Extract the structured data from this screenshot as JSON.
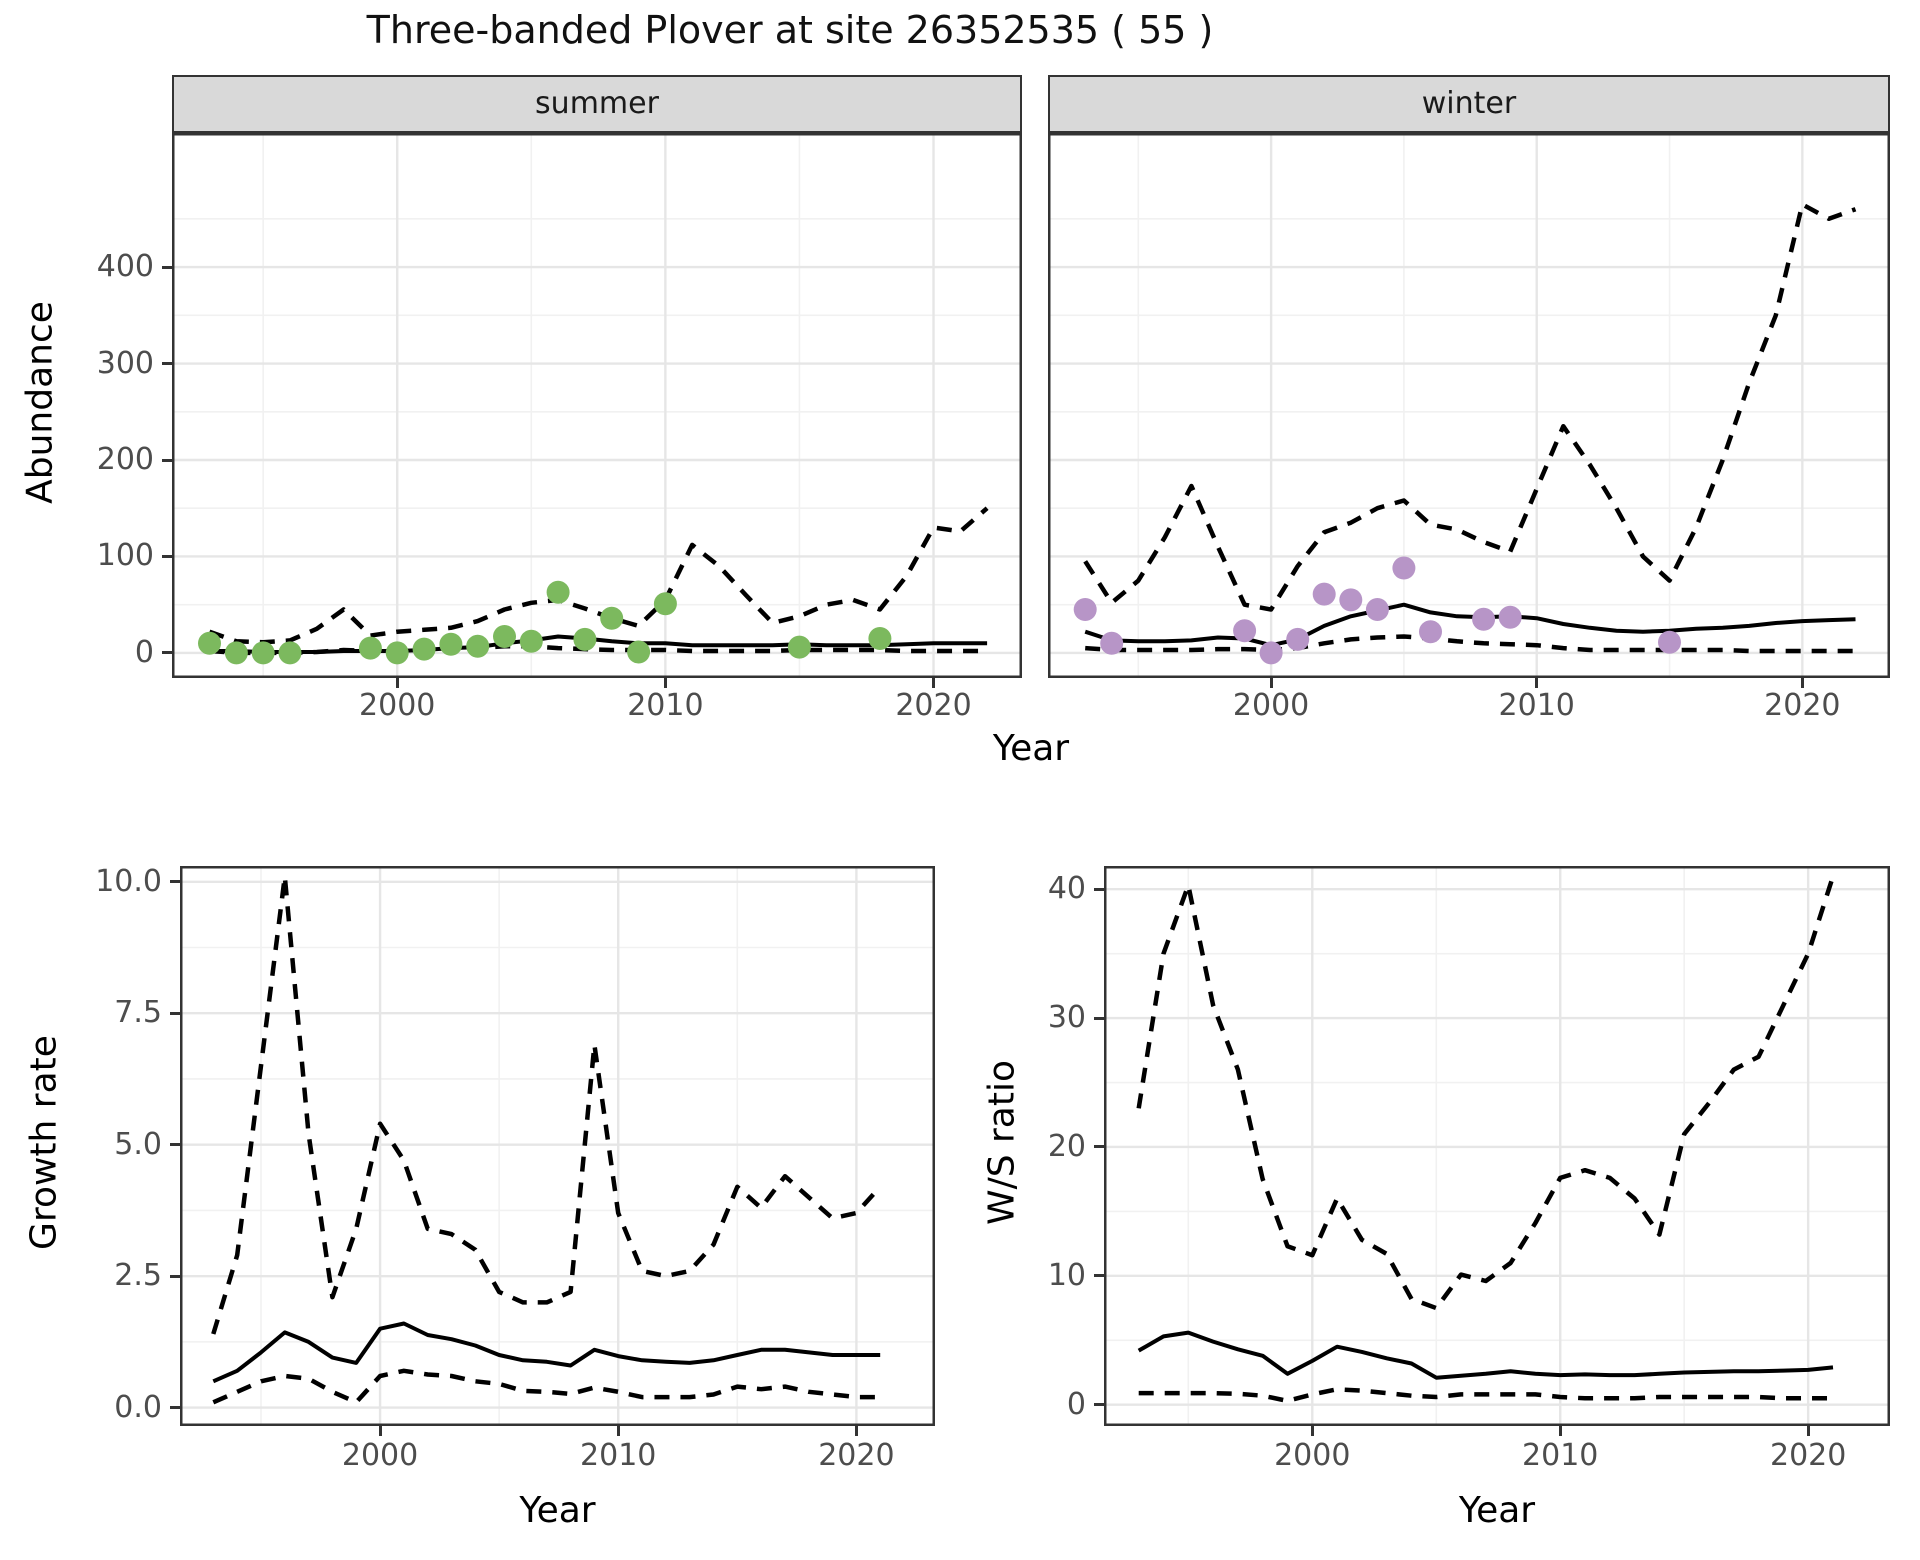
{
  "title": "Three-banded Plover at site 26352535 ( 55 )",
  "colors": {
    "summer_point": "#7cb95e",
    "winter_point": "#b795c7",
    "line": "#000000",
    "panel_border": "#333333",
    "grid_major": "#e6e6e6",
    "grid_minor": "#f1f1f1",
    "strip_bg": "#d9d9d9",
    "tick_text": "#4d4d4d",
    "title_text": "#111111"
  },
  "shared_x_title": "Year",
  "chart_data": [
    {
      "id": "summer",
      "type": "line",
      "facet": "summer",
      "ylabel": "Abundance",
      "xlabel": "Year",
      "legend_position": "none",
      "grid": true,
      "x_domain": [
        1991.6,
        2023.3
      ],
      "y_domain": [
        -26,
        539
      ],
      "x_ticks": [
        2000,
        2010,
        2020
      ],
      "x_tick_labels": [
        "2000",
        "2010",
        "2020"
      ],
      "x_minor": [
        1995,
        2005,
        2015
      ],
      "y_ticks": [
        0,
        100,
        200,
        300,
        400
      ],
      "y_tick_labels": [
        "0",
        "100",
        "200",
        "300",
        "400"
      ],
      "y_minor": [
        50,
        150,
        250,
        350,
        450
      ],
      "show_y_labels": true,
      "years": [
        1993,
        1994,
        1995,
        1996,
        1997,
        1998,
        1999,
        2000,
        2001,
        2002,
        2003,
        2004,
        2005,
        2006,
        2007,
        2008,
        2009,
        2010,
        2011,
        2012,
        2013,
        2014,
        2015,
        2016,
        2017,
        2018,
        2019,
        2020,
        2021,
        2022
      ],
      "series": [
        {
          "name": "ci_upper",
          "style": "dashed",
          "values": [
            22,
            12,
            11,
            13,
            25,
            45,
            18,
            22,
            24,
            26,
            33,
            45,
            52,
            55,
            46,
            36,
            28,
            55,
            112,
            90,
            60,
            31,
            38,
            50,
            55,
            45,
            80,
            130,
            126,
            150
          ]
        },
        {
          "name": "median",
          "style": "solid",
          "values": [
            2,
            2,
            1,
            1,
            1,
            2,
            2,
            2,
            3,
            5,
            6,
            10,
            13,
            17,
            15,
            12,
            10,
            10,
            8,
            8,
            8,
            8,
            9,
            8,
            8,
            8,
            9,
            10,
            10,
            10
          ]
        },
        {
          "name": "ci_lower",
          "style": "dashed",
          "values": [
            2,
            0,
            0,
            0,
            1,
            3,
            2,
            3,
            4,
            5,
            5,
            7,
            7,
            5,
            4,
            3,
            3,
            3,
            2,
            2,
            2,
            2,
            3,
            3,
            3,
            3,
            2,
            2,
            2,
            2
          ]
        }
      ],
      "points": {
        "color_key": "summer_point",
        "years": [
          1993,
          1994,
          1995,
          1996,
          1999,
          2000,
          2001,
          2002,
          2003,
          2004,
          2005,
          2006,
          2007,
          2008,
          2009,
          2010,
          2015,
          2018
        ],
        "values": [
          10,
          0,
          0,
          0,
          5,
          0,
          4,
          9,
          7,
          17,
          12,
          63,
          14,
          36,
          1,
          51,
          6,
          15
        ]
      }
    },
    {
      "id": "winter",
      "type": "line",
      "facet": "winter",
      "ylabel": "Abundance",
      "xlabel": "Year",
      "grid": true,
      "x_domain": [
        1991.6,
        2023.3
      ],
      "y_domain": [
        -26,
        539
      ],
      "x_ticks": [
        2000,
        2010,
        2020
      ],
      "x_tick_labels": [
        "2000",
        "2010",
        "2020"
      ],
      "x_minor": [
        1995,
        2005,
        2015
      ],
      "y_ticks": [
        0,
        100,
        200,
        300,
        400
      ],
      "y_tick_labels": [
        "0",
        "100",
        "200",
        "300",
        "400"
      ],
      "y_minor": [
        50,
        150,
        250,
        350,
        450
      ],
      "show_y_labels": false,
      "years": [
        1993,
        1994,
        1995,
        1996,
        1997,
        1998,
        1999,
        2000,
        2001,
        2002,
        2003,
        2004,
        2005,
        2006,
        2007,
        2008,
        2009,
        2010,
        2011,
        2012,
        2013,
        2014,
        2015,
        2016,
        2017,
        2018,
        2019,
        2020,
        2021,
        2022
      ],
      "series": [
        {
          "name": "ci_upper",
          "style": "dashed",
          "values": [
            95,
            52,
            75,
            120,
            173,
            110,
            50,
            45,
            90,
            125,
            135,
            150,
            158,
            133,
            128,
            115,
            105,
            170,
            235,
            195,
            150,
            100,
            75,
            130,
            200,
            280,
            350,
            465,
            450,
            460
          ]
        },
        {
          "name": "median",
          "style": "solid",
          "values": [
            22,
            13,
            12,
            12,
            13,
            16,
            15,
            8,
            14,
            28,
            38,
            44,
            50,
            42,
            38,
            37,
            38,
            36,
            30,
            26,
            23,
            22,
            23,
            25,
            26,
            28,
            31,
            33,
            34,
            35
          ]
        },
        {
          "name": "ci_lower",
          "style": "dashed",
          "values": [
            5,
            3,
            3,
            3,
            3,
            4,
            4,
            3,
            5,
            10,
            14,
            16,
            17,
            15,
            12,
            10,
            9,
            8,
            5,
            3,
            3,
            3,
            3,
            3,
            3,
            2,
            2,
            2,
            2,
            2
          ]
        }
      ],
      "points": {
        "color_key": "winter_point",
        "years": [
          1993,
          1994,
          1999,
          2000,
          2001,
          2002,
          2003,
          2004,
          2005,
          2006,
          2008,
          2009,
          2015
        ],
        "values": [
          45,
          10,
          23,
          0,
          14,
          61,
          55,
          45,
          88,
          22,
          35,
          37,
          11
        ]
      }
    },
    {
      "id": "growth",
      "type": "line",
      "facet": null,
      "ylabel": "Growth rate",
      "xlabel": "Year",
      "grid": true,
      "x_domain": [
        1991.6,
        2023.3
      ],
      "y_domain": [
        -0.35,
        10.3
      ],
      "x_ticks": [
        2000,
        2010,
        2020
      ],
      "x_tick_labels": [
        "2000",
        "2010",
        "2020"
      ],
      "x_minor": [
        1995,
        2005,
        2015
      ],
      "y_ticks": [
        0,
        2.5,
        5,
        7.5,
        10
      ],
      "y_tick_labels": [
        "0.0",
        "2.5",
        "5.0",
        "7.5",
        "10.0"
      ],
      "y_minor": [
        1.25,
        3.75,
        6.25,
        8.75
      ],
      "show_y_labels": true,
      "years": [
        1993,
        1994,
        1995,
        1996,
        1997,
        1998,
        1999,
        2000,
        2001,
        2002,
        2003,
        2004,
        2005,
        2006,
        2007,
        2008,
        2009,
        2010,
        2011,
        2012,
        2013,
        2014,
        2015,
        2016,
        2017,
        2018,
        2019,
        2020,
        2021
      ],
      "series": [
        {
          "name": "ci_upper",
          "style": "dashed",
          "values": [
            1.4,
            2.9,
            6.5,
            10.1,
            5.2,
            2.1,
            3.4,
            5.4,
            4.7,
            3.4,
            3.3,
            3.0,
            2.2,
            2.0,
            2.0,
            2.2,
            6.9,
            3.7,
            2.6,
            2.5,
            2.6,
            3.1,
            4.2,
            3.8,
            4.4,
            4.0,
            3.6,
            3.7,
            4.2
          ]
        },
        {
          "name": "median",
          "style": "solid",
          "values": [
            0.5,
            0.7,
            1.05,
            1.43,
            1.25,
            0.95,
            0.85,
            1.5,
            1.6,
            1.38,
            1.3,
            1.18,
            1.0,
            0.9,
            0.87,
            0.8,
            1.1,
            0.98,
            0.9,
            0.87,
            0.85,
            0.9,
            1.0,
            1.1,
            1.1,
            1.05,
            1.0,
            1.0,
            1.0
          ]
        },
        {
          "name": "ci_lower",
          "style": "dashed",
          "values": [
            0.1,
            0.3,
            0.5,
            0.6,
            0.55,
            0.3,
            0.1,
            0.6,
            0.7,
            0.63,
            0.6,
            0.5,
            0.45,
            0.32,
            0.3,
            0.26,
            0.38,
            0.3,
            0.2,
            0.2,
            0.2,
            0.25,
            0.4,
            0.35,
            0.4,
            0.3,
            0.25,
            0.2,
            0.2
          ]
        }
      ],
      "points": null
    },
    {
      "id": "ws",
      "type": "line",
      "facet": null,
      "ylabel": "W/S ratio",
      "xlabel": "Year",
      "grid": true,
      "x_domain": [
        1991.6,
        2023.3
      ],
      "y_domain": [
        -1.65,
        41.8
      ],
      "x_ticks": [
        2000,
        2010,
        2020
      ],
      "x_tick_labels": [
        "2000",
        "2010",
        "2020"
      ],
      "x_minor": [
        1995,
        2005,
        2015
      ],
      "y_ticks": [
        0,
        10,
        20,
        30,
        40
      ],
      "y_tick_labels": [
        "0",
        "10",
        "20",
        "30",
        "40"
      ],
      "y_minor": [
        5,
        15,
        25,
        35
      ],
      "show_y_labels": true,
      "years": [
        1993,
        1994,
        1995,
        1996,
        1997,
        1998,
        1999,
        2000,
        2001,
        2002,
        2003,
        2004,
        2005,
        2006,
        2007,
        2008,
        2009,
        2010,
        2011,
        2012,
        2013,
        2014,
        2015,
        2016,
        2017,
        2018,
        2019,
        2020,
        2021
      ],
      "series": [
        {
          "name": "ci_upper",
          "style": "dashed",
          "values": [
            23,
            35,
            40.3,
            31,
            26,
            17.5,
            12.3,
            11.6,
            16,
            12.8,
            11.7,
            8.2,
            7.5,
            10.1,
            9.6,
            11,
            14.1,
            17.6,
            18.2,
            17.6,
            16,
            13.2,
            21,
            23.4,
            26,
            27,
            31,
            35,
            41
          ]
        },
        {
          "name": "median",
          "style": "solid",
          "values": [
            4.2,
            5.3,
            5.6,
            4.9,
            4.3,
            3.8,
            2.4,
            3.4,
            4.5,
            4.1,
            3.6,
            3.2,
            2.1,
            2.25,
            2.4,
            2.6,
            2.4,
            2.3,
            2.35,
            2.3,
            2.3,
            2.4,
            2.5,
            2.55,
            2.6,
            2.6,
            2.65,
            2.7,
            2.9
          ]
        },
        {
          "name": "ci_lower",
          "style": "dashed",
          "values": [
            0.9,
            0.9,
            0.9,
            0.9,
            0.85,
            0.7,
            0.3,
            0.8,
            1.2,
            1.1,
            0.9,
            0.7,
            0.6,
            0.8,
            0.8,
            0.8,
            0.8,
            0.6,
            0.5,
            0.5,
            0.5,
            0.6,
            0.6,
            0.6,
            0.6,
            0.6,
            0.5,
            0.5,
            0.5
          ]
        }
      ],
      "points": null
    }
  ]
}
